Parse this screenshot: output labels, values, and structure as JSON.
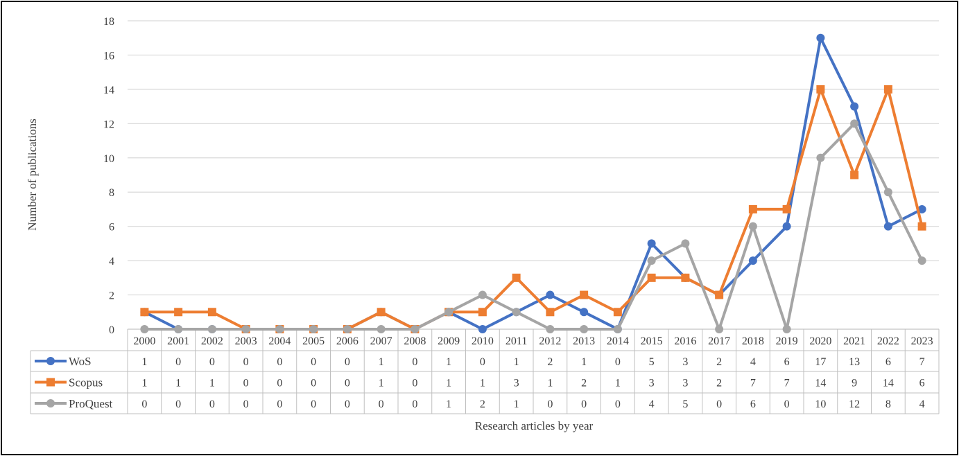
{
  "chart_data": {
    "type": "line",
    "title": "",
    "xlabel": "Research articles  by year",
    "ylabel": "Number of publications",
    "ylim": [
      0,
      18
    ],
    "yticks": [
      0,
      2,
      4,
      6,
      8,
      10,
      12,
      14,
      16,
      18
    ],
    "grid": true,
    "legend": "data-table-left",
    "categories": [
      "2000",
      "2001",
      "2002",
      "2003",
      "2004",
      "2005",
      "2006",
      "2007",
      "2008",
      "2009",
      "2010",
      "2011",
      "2012",
      "2013",
      "2014",
      "2015",
      "2016",
      "2017",
      "2018",
      "2019",
      "2020",
      "2021",
      "2022",
      "2023"
    ],
    "series": [
      {
        "name": "WoS",
        "color": "#4472C4",
        "marker": "circle",
        "values": [
          1,
          0,
          0,
          0,
          0,
          0,
          0,
          1,
          0,
          1,
          0,
          1,
          2,
          1,
          0,
          5,
          3,
          2,
          4,
          6,
          17,
          13,
          6,
          7
        ]
      },
      {
        "name": "Scopus",
        "color": "#ED7D31",
        "marker": "square",
        "values": [
          1,
          1,
          1,
          0,
          0,
          0,
          0,
          1,
          0,
          1,
          1,
          3,
          1,
          2,
          1,
          3,
          3,
          2,
          7,
          7,
          14,
          9,
          14,
          6
        ]
      },
      {
        "name": "ProQuest",
        "color": "#A5A5A5",
        "marker": "circle",
        "values": [
          0,
          0,
          0,
          0,
          0,
          0,
          0,
          0,
          0,
          1,
          2,
          1,
          0,
          0,
          0,
          4,
          5,
          0,
          6,
          0,
          10,
          12,
          8,
          4
        ]
      }
    ]
  }
}
